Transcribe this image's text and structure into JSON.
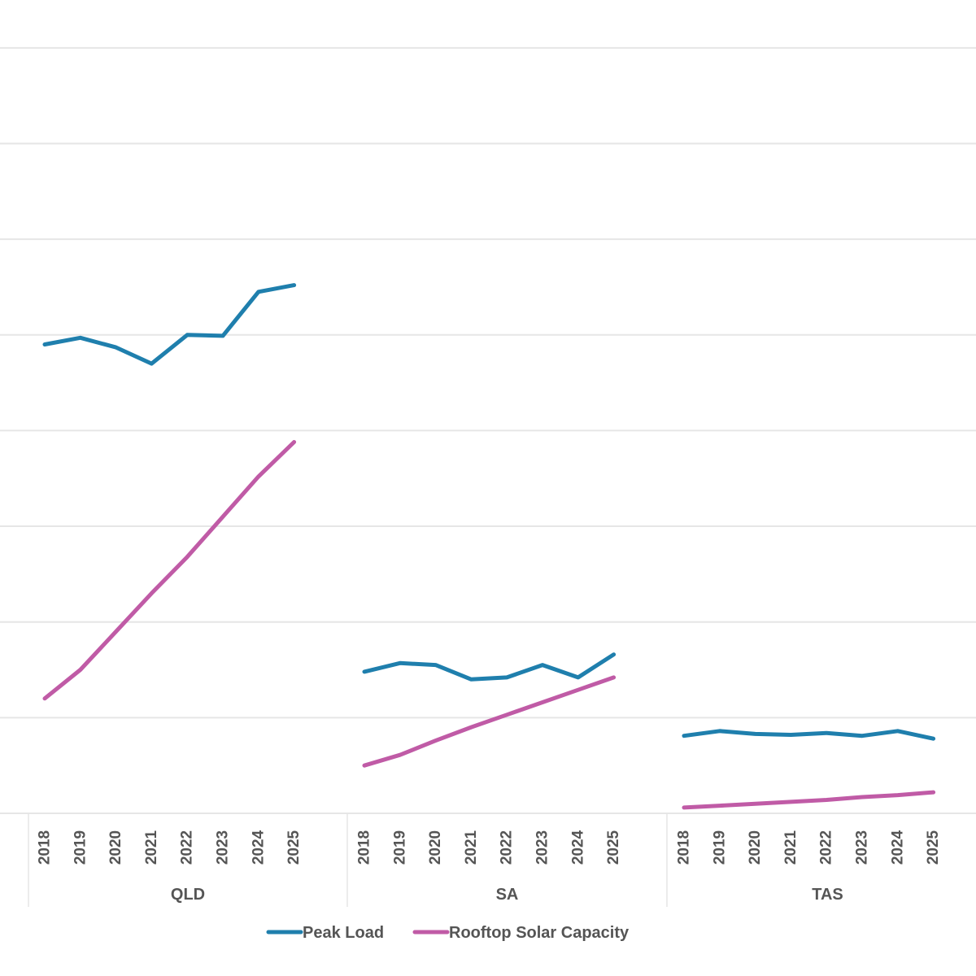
{
  "chart_data": {
    "type": "line",
    "title": "",
    "xlabel": "",
    "ylabel": "",
    "ylim": [
      0,
      8500
    ],
    "grid": true,
    "legend_position": "bottom",
    "colors": {
      "Peak Load": "#1f7fad",
      "Rooftop Solar Capacity": "#c05ba6"
    },
    "groups": [
      {
        "label": "QLD",
        "x": [
          "2018",
          "2019",
          "2020",
          "2021",
          "2022",
          "2023",
          "2024",
          "2025"
        ],
        "series": [
          {
            "name": "Peak Load",
            "values": [
              4900,
              4970,
              4870,
              4700,
              5000,
              4990,
              5450,
              5520
            ]
          },
          {
            "name": "Rooftop Solar Capacity",
            "values": [
              1200,
              1500,
              1900,
              2300,
              2680,
              3100,
              3520,
              3880
            ]
          }
        ]
      },
      {
        "label": "SA",
        "x": [
          "2018",
          "2019",
          "2020",
          "2021",
          "2022",
          "2023",
          "2024",
          "2025"
        ],
        "series": [
          {
            "name": "Peak Load",
            "values": [
              1480,
              1570,
              1550,
              1400,
              1420,
              1550,
              1420,
              1660
            ]
          },
          {
            "name": "Rooftop Solar Capacity",
            "values": [
              500,
              610,
              760,
              900,
              1030,
              1160,
              1290,
              1420
            ]
          }
        ]
      },
      {
        "label": "TAS",
        "x": [
          "2018",
          "2019",
          "2020",
          "2021",
          "2022",
          "2023",
          "2024",
          "2025"
        ],
        "series": [
          {
            "name": "Peak Load",
            "values": [
              810,
              860,
              830,
              820,
              840,
              810,
              860,
              780
            ]
          },
          {
            "name": "Rooftop Solar Capacity",
            "values": [
              60,
              80,
              100,
              120,
              140,
              170,
              190,
              220
            ]
          }
        ]
      }
    ],
    "legend": [
      {
        "name": "Peak Load"
      },
      {
        "name": "Rooftop Solar Capacity"
      }
    ]
  }
}
